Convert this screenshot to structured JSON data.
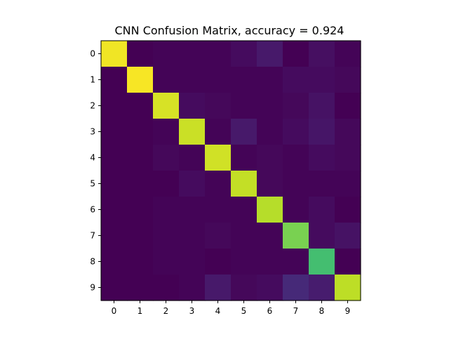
{
  "chart_data": {
    "type": "heatmap",
    "title": "CNN Confusion Matrix, accuracy = 0.924",
    "x_labels": [
      "0",
      "1",
      "2",
      "3",
      "4",
      "5",
      "6",
      "7",
      "8",
      "9"
    ],
    "y_labels": [
      "0",
      "1",
      "2",
      "3",
      "4",
      "5",
      "6",
      "7",
      "8",
      "9"
    ],
    "colormap": "viridis",
    "vmin": 0,
    "vmax": 1,
    "matrix": [
      [
        0.98,
        0.0,
        0.01,
        0.01,
        0.01,
        0.03,
        0.07,
        0.0,
        0.04,
        0.01
      ],
      [
        0.0,
        0.99,
        0.01,
        0.01,
        0.01,
        0.01,
        0.01,
        0.03,
        0.03,
        0.02
      ],
      [
        0.0,
        0.0,
        0.94,
        0.03,
        0.02,
        0.01,
        0.01,
        0.02,
        0.05,
        0.0
      ],
      [
        0.0,
        0.0,
        0.01,
        0.92,
        0.01,
        0.07,
        0.01,
        0.03,
        0.06,
        0.02
      ],
      [
        0.0,
        0.0,
        0.02,
        0.01,
        0.93,
        0.01,
        0.02,
        0.01,
        0.03,
        0.02
      ],
      [
        0.0,
        0.0,
        0.0,
        0.03,
        0.01,
        0.91,
        0.02,
        0.01,
        0.01,
        0.01
      ],
      [
        0.0,
        0.0,
        0.01,
        0.01,
        0.01,
        0.01,
        0.89,
        0.01,
        0.03,
        0.0
      ],
      [
        0.0,
        0.0,
        0.01,
        0.01,
        0.02,
        0.01,
        0.01,
        0.8,
        0.03,
        0.05
      ],
      [
        0.0,
        0.0,
        0.01,
        0.01,
        0.0,
        0.01,
        0.01,
        0.01,
        0.7,
        0.0
      ],
      [
        0.0,
        0.0,
        0.0,
        0.01,
        0.07,
        0.02,
        0.03,
        0.12,
        0.08,
        0.9
      ]
    ]
  }
}
